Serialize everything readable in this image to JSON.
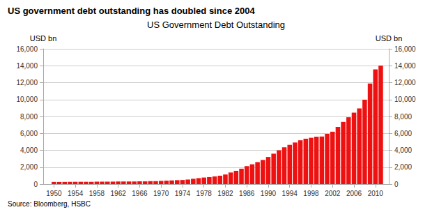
{
  "chart_data": {
    "type": "bar",
    "title": "US Government Debt Outstanding",
    "subtitle": "US government debt outstanding has doubled since 2004",
    "y_label": "USD bn",
    "y2_label": "USD bn",
    "source": "Source: Bloomberg, HSBC",
    "color": "#ee1111",
    "x": [
      1950,
      1951,
      1952,
      1953,
      1954,
      1955,
      1956,
      1957,
      1958,
      1959,
      1960,
      1961,
      1962,
      1963,
      1964,
      1965,
      1966,
      1967,
      1968,
      1969,
      1970,
      1971,
      1972,
      1973,
      1974,
      1975,
      1976,
      1977,
      1978,
      1979,
      1980,
      1981,
      1982,
      1983,
      1984,
      1985,
      1986,
      1987,
      1988,
      1989,
      1990,
      1991,
      1992,
      1993,
      1994,
      1995,
      1996,
      1997,
      1998,
      1999,
      2000,
      2001,
      2002,
      2003,
      2004,
      2005,
      2006,
      2007,
      2008,
      2009,
      2010,
      2011
    ],
    "values": [
      257,
      255,
      259,
      266,
      271,
      274,
      273,
      272,
      280,
      284,
      290,
      293,
      303,
      310,
      316,
      317,
      320,
      326,
      348,
      354,
      380,
      408,
      435,
      466,
      484,
      541,
      629,
      706,
      777,
      829,
      909,
      994,
      1137,
      1372,
      1572,
      1823,
      2125,
      2345,
      2602,
      2857,
      3206,
      3598,
      4001,
      4351,
      4643,
      4920,
      5181,
      5369,
      5478,
      5606,
      5629,
      5943,
      6198,
      6760,
      7355,
      7905,
      8451,
      8951,
      9986,
      11898,
      13562,
      14025
    ],
    "xlim": [
      1948.0,
      2012.5
    ],
    "xticks": [
      1950,
      1954,
      1958,
      1962,
      1966,
      1970,
      1974,
      1978,
      1982,
      1986,
      1990,
      1994,
      1998,
      2002,
      2006,
      2010
    ],
    "ylim": [
      0,
      16000
    ],
    "yticks": [
      0,
      {
        "value": 2000,
        "label": "2,000"
      },
      {
        "value": 4000,
        "label": "4,000"
      },
      {
        "value": 6000,
        "label": "6,000"
      },
      {
        "value": 8000,
        "label": "8,000"
      },
      {
        "value": 10000,
        "label": "10,000"
      },
      {
        "value": 12000,
        "label": "12,000"
      },
      {
        "value": 14000,
        "label": "14,000"
      },
      {
        "value": 16000,
        "label": "16,000"
      }
    ],
    "y2lim": [
      0,
      16000
    ],
    "y2ticks": [
      0,
      {
        "value": 2000,
        "label": "2,000"
      },
      {
        "value": 4000,
        "label": "4,000"
      },
      {
        "value": 6000,
        "label": "6,000"
      },
      {
        "value": 8000,
        "label": "8,000"
      },
      {
        "value": 10000,
        "label": "10,000"
      },
      {
        "value": 12000,
        "label": "12,000"
      },
      {
        "value": 14000,
        "label": "14,000"
      },
      {
        "value": 16000,
        "label": "16,000"
      }
    ],
    "grid": true
  }
}
